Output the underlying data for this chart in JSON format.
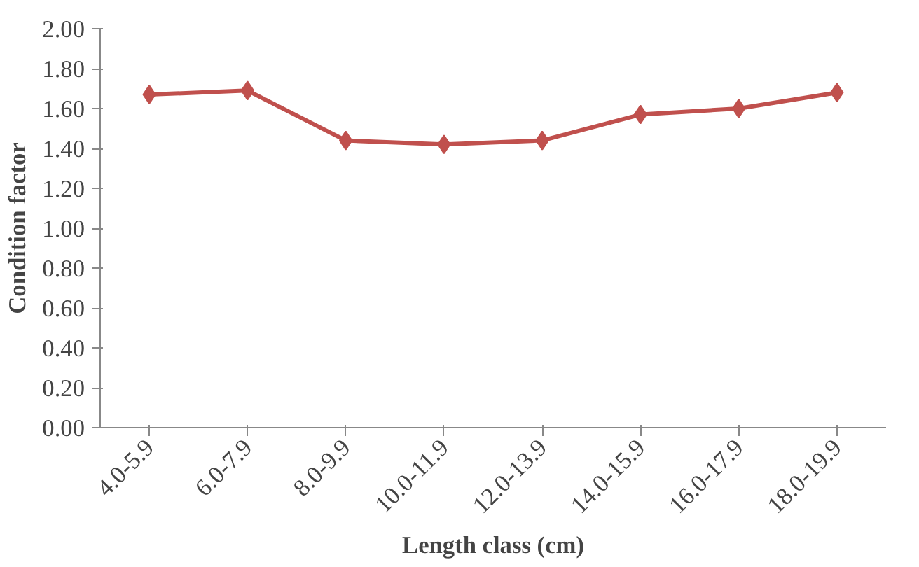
{
  "chart_data": {
    "type": "line",
    "xlabel": "Length class (cm)",
    "ylabel": "Condition factor",
    "categories": [
      "4.0-5.9",
      "6.0-7.9",
      "8.0-9.9",
      "10.0-11.9",
      "12.0-13.9",
      "14.0-15.9",
      "16.0-17.9",
      "18.0-19.9"
    ],
    "series": [
      {
        "color": "#c0504d",
        "values": [
          1.67,
          1.69,
          1.44,
          1.42,
          1.44,
          1.57,
          1.6,
          1.68
        ]
      }
    ],
    "ylim": [
      0,
      2
    ],
    "yticks": [
      {
        "value": 0,
        "label": "0.00"
      },
      {
        "value": 0.2,
        "label": "0.20"
      },
      {
        "value": 0.4,
        "label": "0.40"
      },
      {
        "value": 0.6,
        "label": "0.60"
      },
      {
        "value": 0.8,
        "label": "0.80"
      },
      {
        "value": 1.0,
        "label": "1.00"
      },
      {
        "value": 1.2,
        "label": "1.20"
      },
      {
        "value": 1.4,
        "label": "1.40"
      },
      {
        "value": 1.6,
        "label": "1.60"
      },
      {
        "value": 1.8,
        "label": "1.80"
      },
      {
        "value": 2.0,
        "label": "2.00"
      }
    ],
    "marker": "diamond",
    "line_style": "solid",
    "grid": false
  }
}
